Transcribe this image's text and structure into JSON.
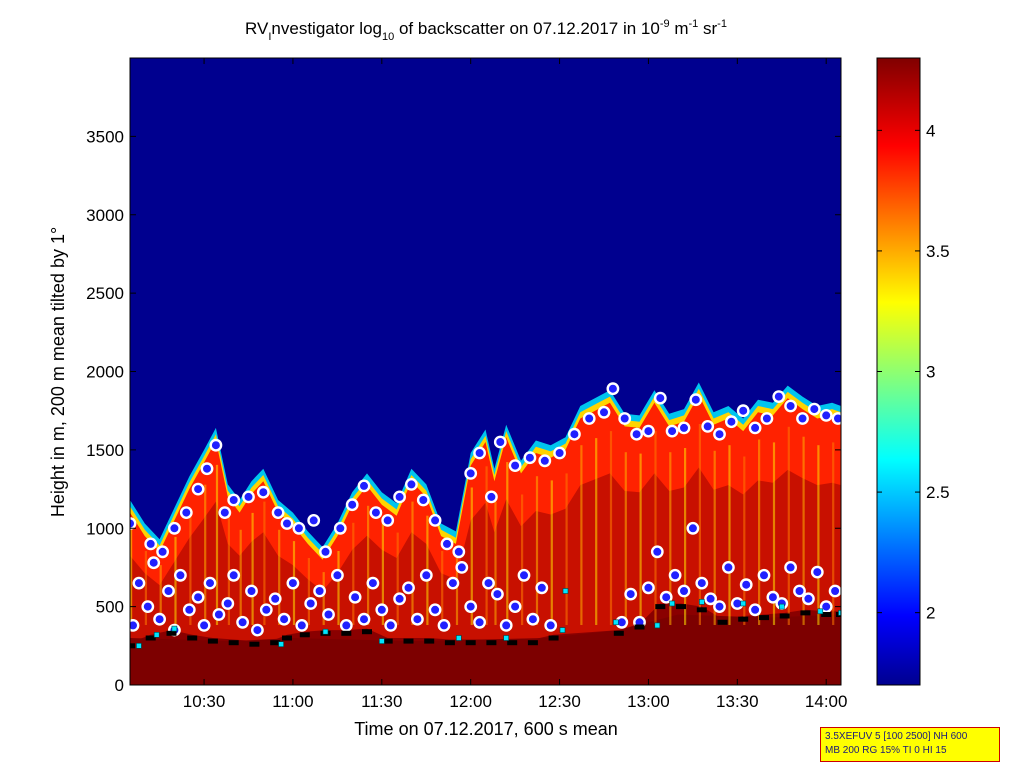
{
  "chart_data": {
    "type": "heatmap",
    "title": {
      "prefix": "RV",
      "sub_prefix": "I",
      "main": "nvestigator log",
      "sub_log": "10",
      "rest": " of backscatter on 07.12.2017 in 10",
      "exp1": "-9",
      "unit1": " m",
      "exp2": "-1",
      "unit2": " sr",
      "exp3": "-1"
    },
    "xlabel": "Time on 07.12.2017, 600 s mean",
    "ylabel": "Height in m, 200 m mean tilted by 1°",
    "xlim_minutes": [
      605,
      845
    ],
    "ylim": [
      0,
      4000
    ],
    "x_ticks": [
      {
        "minute": 630,
        "label": "10:30"
      },
      {
        "minute": 660,
        "label": "11:00"
      },
      {
        "minute": 690,
        "label": "11:30"
      },
      {
        "minute": 720,
        "label": "12:00"
      },
      {
        "minute": 750,
        "label": "12:30"
      },
      {
        "minute": 780,
        "label": "13:00"
      },
      {
        "minute": 810,
        "label": "13:30"
      },
      {
        "minute": 840,
        "label": "14:00"
      }
    ],
    "y_ticks": [
      "0",
      "500",
      "1000",
      "1500",
      "2000",
      "2500",
      "3000",
      "3500"
    ],
    "colorbar": {
      "range": [
        1.7,
        4.3
      ],
      "ticks": [
        "2",
        "2.5",
        "3",
        "3.5",
        "4"
      ],
      "colormap": "jet",
      "colors": [
        "#00008f",
        "#0000ff",
        "#00ffff",
        "#ffff00",
        "#ff0000",
        "#800000"
      ]
    },
    "cloud_top_height": [
      {
        "t": 605,
        "h": 1100
      },
      {
        "t": 610,
        "h": 950
      },
      {
        "t": 615,
        "h": 850
      },
      {
        "t": 620,
        "h": 1050
      },
      {
        "t": 625,
        "h": 1250
      },
      {
        "t": 630,
        "h": 1420
      },
      {
        "t": 634,
        "h": 1560
      },
      {
        "t": 638,
        "h": 1200
      },
      {
        "t": 642,
        "h": 1100
      },
      {
        "t": 646,
        "h": 1220
      },
      {
        "t": 650,
        "h": 1300
      },
      {
        "t": 655,
        "h": 1100
      },
      {
        "t": 660,
        "h": 1020
      },
      {
        "t": 665,
        "h": 900
      },
      {
        "t": 670,
        "h": 800
      },
      {
        "t": 675,
        "h": 950
      },
      {
        "t": 680,
        "h": 1150
      },
      {
        "t": 685,
        "h": 1270
      },
      {
        "t": 690,
        "h": 1150
      },
      {
        "t": 695,
        "h": 1080
      },
      {
        "t": 700,
        "h": 1300
      },
      {
        "t": 705,
        "h": 1200
      },
      {
        "t": 710,
        "h": 950
      },
      {
        "t": 715,
        "h": 900
      },
      {
        "t": 720,
        "h": 1400
      },
      {
        "t": 725,
        "h": 1550
      },
      {
        "t": 728,
        "h": 1300
      },
      {
        "t": 732,
        "h": 1580
      },
      {
        "t": 737,
        "h": 1350
      },
      {
        "t": 742,
        "h": 1480
      },
      {
        "t": 747,
        "h": 1450
      },
      {
        "t": 752,
        "h": 1500
      },
      {
        "t": 757,
        "h": 1700
      },
      {
        "t": 762,
        "h": 1750
      },
      {
        "t": 767,
        "h": 1800
      },
      {
        "t": 772,
        "h": 1650
      },
      {
        "t": 777,
        "h": 1640
      },
      {
        "t": 782,
        "h": 1800
      },
      {
        "t": 787,
        "h": 1650
      },
      {
        "t": 792,
        "h": 1680
      },
      {
        "t": 797,
        "h": 1850
      },
      {
        "t": 802,
        "h": 1660
      },
      {
        "t": 807,
        "h": 1700
      },
      {
        "t": 812,
        "h": 1620
      },
      {
        "t": 817,
        "h": 1740
      },
      {
        "t": 822,
        "h": 1720
      },
      {
        "t": 827,
        "h": 1830
      },
      {
        "t": 832,
        "h": 1760
      },
      {
        "t": 837,
        "h": 1700
      },
      {
        "t": 842,
        "h": 1720
      },
      {
        "t": 845,
        "h": 1700
      }
    ],
    "surface_layer_top": [
      {
        "t": 605,
        "h": 300
      },
      {
        "t": 640,
        "h": 280
      },
      {
        "t": 660,
        "h": 300
      },
      {
        "t": 700,
        "h": 280
      },
      {
        "t": 745,
        "h": 300
      },
      {
        "t": 770,
        "h": 350
      },
      {
        "t": 790,
        "h": 450
      },
      {
        "t": 820,
        "h": 430
      },
      {
        "t": 845,
        "h": 450
      }
    ],
    "markers_layer_top": [
      {
        "t": 605,
        "h": 1030
      },
      {
        "t": 612,
        "h": 900
      },
      {
        "t": 616,
        "h": 850
      },
      {
        "t": 620,
        "h": 1000
      },
      {
        "t": 624,
        "h": 1100
      },
      {
        "t": 628,
        "h": 1250
      },
      {
        "t": 631,
        "h": 1380
      },
      {
        "t": 634,
        "h": 1530
      },
      {
        "t": 637,
        "h": 1100
      },
      {
        "t": 640,
        "h": 1180
      },
      {
        "t": 645,
        "h": 1200
      },
      {
        "t": 650,
        "h": 1230
      },
      {
        "t": 655,
        "h": 1100
      },
      {
        "t": 658,
        "h": 1030
      },
      {
        "t": 662,
        "h": 1000
      },
      {
        "t": 667,
        "h": 1050
      },
      {
        "t": 671,
        "h": 850
      },
      {
        "t": 676,
        "h": 1000
      },
      {
        "t": 680,
        "h": 1150
      },
      {
        "t": 684,
        "h": 1270
      },
      {
        "t": 688,
        "h": 1100
      },
      {
        "t": 692,
        "h": 1050
      },
      {
        "t": 696,
        "h": 1200
      },
      {
        "t": 700,
        "h": 1280
      },
      {
        "t": 704,
        "h": 1180
      },
      {
        "t": 708,
        "h": 1050
      },
      {
        "t": 712,
        "h": 900
      },
      {
        "t": 716,
        "h": 850
      },
      {
        "t": 720,
        "h": 1350
      },
      {
        "t": 723,
        "h": 1480
      },
      {
        "t": 727,
        "h": 1200
      },
      {
        "t": 730,
        "h": 1550
      },
      {
        "t": 735,
        "h": 1400
      },
      {
        "t": 740,
        "h": 1450
      },
      {
        "t": 745,
        "h": 1430
      },
      {
        "t": 750,
        "h": 1480
      },
      {
        "t": 755,
        "h": 1600
      },
      {
        "t": 760,
        "h": 1700
      },
      {
        "t": 765,
        "h": 1740
      },
      {
        "t": 768,
        "h": 1890
      },
      {
        "t": 772,
        "h": 1700
      },
      {
        "t": 776,
        "h": 1600
      },
      {
        "t": 780,
        "h": 1620
      },
      {
        "t": 784,
        "h": 1830
      },
      {
        "t": 788,
        "h": 1620
      },
      {
        "t": 792,
        "h": 1640
      },
      {
        "t": 796,
        "h": 1820
      },
      {
        "t": 800,
        "h": 1650
      },
      {
        "t": 804,
        "h": 1600
      },
      {
        "t": 808,
        "h": 1680
      },
      {
        "t": 812,
        "h": 1750
      },
      {
        "t": 816,
        "h": 1640
      },
      {
        "t": 820,
        "h": 1700
      },
      {
        "t": 824,
        "h": 1840
      },
      {
        "t": 828,
        "h": 1780
      },
      {
        "t": 832,
        "h": 1700
      },
      {
        "t": 836,
        "h": 1760
      },
      {
        "t": 840,
        "h": 1720
      },
      {
        "t": 844,
        "h": 1700
      }
    ],
    "markers_lower_layers": [
      {
        "t": 606,
        "h": 380
      },
      {
        "t": 608,
        "h": 650
      },
      {
        "t": 611,
        "h": 500
      },
      {
        "t": 613,
        "h": 780
      },
      {
        "t": 615,
        "h": 420
      },
      {
        "t": 618,
        "h": 600
      },
      {
        "t": 620,
        "h": 350
      },
      {
        "t": 622,
        "h": 700
      },
      {
        "t": 625,
        "h": 480
      },
      {
        "t": 628,
        "h": 560
      },
      {
        "t": 630,
        "h": 380
      },
      {
        "t": 632,
        "h": 650
      },
      {
        "t": 635,
        "h": 450
      },
      {
        "t": 638,
        "h": 520
      },
      {
        "t": 640,
        "h": 700
      },
      {
        "t": 643,
        "h": 400
      },
      {
        "t": 646,
        "h": 600
      },
      {
        "t": 648,
        "h": 350
      },
      {
        "t": 651,
        "h": 480
      },
      {
        "t": 654,
        "h": 550
      },
      {
        "t": 657,
        "h": 420
      },
      {
        "t": 660,
        "h": 650
      },
      {
        "t": 663,
        "h": 380
      },
      {
        "t": 666,
        "h": 520
      },
      {
        "t": 669,
        "h": 600
      },
      {
        "t": 672,
        "h": 450
      },
      {
        "t": 675,
        "h": 700
      },
      {
        "t": 678,
        "h": 380
      },
      {
        "t": 681,
        "h": 560
      },
      {
        "t": 684,
        "h": 420
      },
      {
        "t": 687,
        "h": 650
      },
      {
        "t": 690,
        "h": 480
      },
      {
        "t": 693,
        "h": 380
      },
      {
        "t": 696,
        "h": 550
      },
      {
        "t": 699,
        "h": 620
      },
      {
        "t": 702,
        "h": 420
      },
      {
        "t": 705,
        "h": 700
      },
      {
        "t": 708,
        "h": 480
      },
      {
        "t": 711,
        "h": 380
      },
      {
        "t": 714,
        "h": 650
      },
      {
        "t": 717,
        "h": 750
      },
      {
        "t": 720,
        "h": 500
      },
      {
        "t": 723,
        "h": 400
      },
      {
        "t": 726,
        "h": 650
      },
      {
        "t": 729,
        "h": 580
      },
      {
        "t": 732,
        "h": 380
      },
      {
        "t": 735,
        "h": 500
      },
      {
        "t": 738,
        "h": 700
      },
      {
        "t": 741,
        "h": 420
      },
      {
        "t": 744,
        "h": 620
      },
      {
        "t": 747,
        "h": 380
      },
      {
        "t": 771,
        "h": 400
      },
      {
        "t": 774,
        "h": 580
      },
      {
        "t": 777,
        "h": 400
      },
      {
        "t": 780,
        "h": 620
      },
      {
        "t": 783,
        "h": 850
      },
      {
        "t": 786,
        "h": 560
      },
      {
        "t": 789,
        "h": 700
      },
      {
        "t": 792,
        "h": 600
      },
      {
        "t": 795,
        "h": 1000
      },
      {
        "t": 798,
        "h": 650
      },
      {
        "t": 801,
        "h": 550
      },
      {
        "t": 804,
        "h": 500
      },
      {
        "t": 807,
        "h": 750
      },
      {
        "t": 810,
        "h": 520
      },
      {
        "t": 813,
        "h": 640
      },
      {
        "t": 816,
        "h": 480
      },
      {
        "t": 819,
        "h": 700
      },
      {
        "t": 822,
        "h": 560
      },
      {
        "t": 825,
        "h": 520
      },
      {
        "t": 828,
        "h": 750
      },
      {
        "t": 831,
        "h": 600
      },
      {
        "t": 834,
        "h": 550
      },
      {
        "t": 837,
        "h": 720
      },
      {
        "t": 840,
        "h": 500
      },
      {
        "t": 843,
        "h": 600
      }
    ],
    "mixing_layer_height": [
      {
        "t": 605,
        "h": 250
      },
      {
        "t": 612,
        "h": 300
      },
      {
        "t": 619,
        "h": 330
      },
      {
        "t": 626,
        "h": 300
      },
      {
        "t": 633,
        "h": 280
      },
      {
        "t": 640,
        "h": 270
      },
      {
        "t": 647,
        "h": 260
      },
      {
        "t": 654,
        "h": 270
      },
      {
        "t": 658,
        "h": 300
      },
      {
        "t": 664,
        "h": 320
      },
      {
        "t": 671,
        "h": 330
      },
      {
        "t": 678,
        "h": 330
      },
      {
        "t": 685,
        "h": 340
      },
      {
        "t": 692,
        "h": 280
      },
      {
        "t": 699,
        "h": 280
      },
      {
        "t": 706,
        "h": 280
      },
      {
        "t": 713,
        "h": 270
      },
      {
        "t": 720,
        "h": 270
      },
      {
        "t": 727,
        "h": 270
      },
      {
        "t": 734,
        "h": 270
      },
      {
        "t": 741,
        "h": 270
      },
      {
        "t": 748,
        "h": 300
      },
      {
        "t": 770,
        "h": 330
      },
      {
        "t": 777,
        "h": 370
      },
      {
        "t": 784,
        "h": 500
      },
      {
        "t": 791,
        "h": 500
      },
      {
        "t": 798,
        "h": 480
      },
      {
        "t": 805,
        "h": 400
      },
      {
        "t": 812,
        "h": 420
      },
      {
        "t": 819,
        "h": 430
      },
      {
        "t": 826,
        "h": 440
      },
      {
        "t": 833,
        "h": 460
      },
      {
        "t": 840,
        "h": 450
      },
      {
        "t": 845,
        "h": 450
      }
    ],
    "cyan_markers": [
      {
        "t": 608,
        "h": 250
      },
      {
        "t": 614,
        "h": 320
      },
      {
        "t": 620,
        "h": 360
      },
      {
        "t": 656,
        "h": 260
      },
      {
        "t": 671,
        "h": 340
      },
      {
        "t": 690,
        "h": 280
      },
      {
        "t": 716,
        "h": 300
      },
      {
        "t": 732,
        "h": 300
      },
      {
        "t": 752,
        "h": 600
      },
      {
        "t": 751,
        "h": 350
      },
      {
        "t": 769,
        "h": 400
      },
      {
        "t": 783,
        "h": 380
      },
      {
        "t": 788,
        "h": 520
      },
      {
        "t": 798,
        "h": 530
      },
      {
        "t": 812,
        "h": 520
      },
      {
        "t": 825,
        "h": 500
      },
      {
        "t": 838,
        "h": 470
      },
      {
        "t": 845,
        "h": 460
      }
    ]
  },
  "annotation": {
    "line1": "3.5XEFUV 5 [100 2500] NH 600",
    "line2": "MB 200 RG 15% TI 0 HI 15"
  }
}
